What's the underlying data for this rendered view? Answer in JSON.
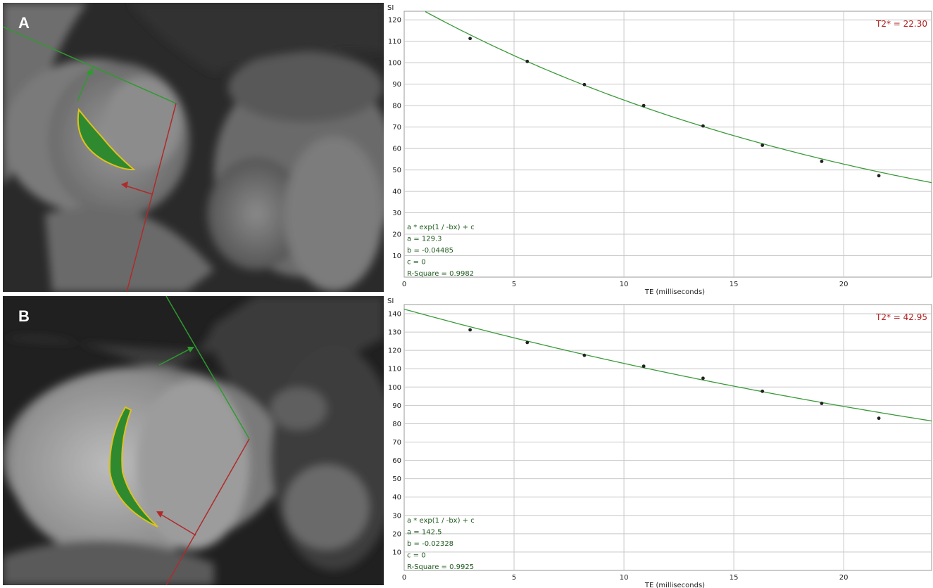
{
  "panels": [
    {
      "letter": "A",
      "t2star_label": "T2* = 22.30",
      "equation": [
        "a * exp(1 / -bx) + c",
        "a = 129.3",
        "b = -0.04485",
        "c = 0",
        "R-Square = 0.9982"
      ]
    },
    {
      "letter": "B",
      "t2star_label": "T2* = 42.95",
      "equation": [
        "a * exp(1 / -bx) + c",
        "a = 142.5",
        "b = -0.02328",
        "c = 0",
        "R-Square = 0.9925"
      ]
    }
  ],
  "chart_data": [
    {
      "type": "scatter",
      "title": "",
      "xlabel": "TE (milliseconds)",
      "ylabel": "SI",
      "xlim": [
        0,
        24
      ],
      "ylim": [
        0,
        124
      ],
      "xticks": [
        0,
        5,
        10,
        15,
        20
      ],
      "yticks": [
        10,
        20,
        30,
        40,
        50,
        60,
        70,
        80,
        90,
        100,
        110,
        120
      ],
      "grid": true,
      "series": [
        {
          "x": [
            3.0,
            5.6,
            8.2,
            10.9,
            13.6,
            16.3,
            19.0,
            21.6
          ],
          "y": [
            111.3,
            100.6,
            89.8,
            80.0,
            70.5,
            61.5,
            54.0,
            47.3
          ]
        }
      ],
      "fit": {
        "model": "a*exp(-b*x)+c",
        "a": 129.3,
        "b": 0.04485,
        "c": 0
      },
      "colors": {
        "fit": "#3a9a3a",
        "points": "#222222",
        "grid": "#c8c8c8",
        "t2": "#b22222"
      }
    },
    {
      "type": "scatter",
      "title": "",
      "xlabel": "TE (milliseconds)",
      "ylabel": "SI",
      "xlim": [
        0,
        24
      ],
      "ylim": [
        0,
        145
      ],
      "xticks": [
        0,
        5,
        10,
        15,
        20
      ],
      "yticks": [
        10,
        20,
        30,
        40,
        50,
        60,
        70,
        80,
        90,
        100,
        110,
        120,
        130,
        140
      ],
      "grid": true,
      "series": [
        {
          "x": [
            3.0,
            5.6,
            8.2,
            10.9,
            13.6,
            16.3,
            19.0,
            21.6
          ],
          "y": [
            131.2,
            124.3,
            117.3,
            111.4,
            104.8,
            97.7,
            91.1,
            83.0
          ]
        }
      ],
      "fit": {
        "model": "a*exp(-b*x)+c",
        "a": 142.5,
        "b": 0.02328,
        "c": 0
      },
      "colors": {
        "fit": "#3a9a3a",
        "points": "#222222",
        "grid": "#c8c8c8",
        "t2": "#b22222"
      }
    }
  ]
}
